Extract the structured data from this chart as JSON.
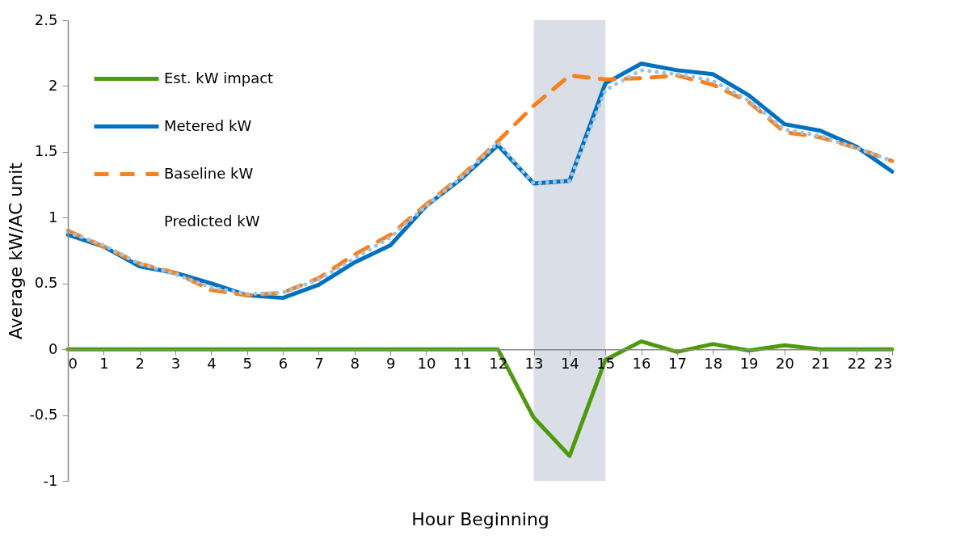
{
  "chart_data": {
    "type": "line",
    "xlabel": "Hour Beginning",
    "ylabel": "Average kW/AC unit",
    "x": [
      0,
      1,
      2,
      3,
      4,
      5,
      6,
      7,
      8,
      9,
      10,
      11,
      12,
      13,
      14,
      15,
      16,
      17,
      18,
      19,
      20,
      21,
      22,
      23
    ],
    "xlim": [
      0,
      23
    ],
    "xticks": [
      0,
      1,
      2,
      3,
      4,
      5,
      6,
      7,
      8,
      9,
      10,
      11,
      12,
      13,
      14,
      15,
      16,
      17,
      18,
      19,
      20,
      21,
      22,
      23
    ],
    "ylim": [
      -1,
      2.5
    ],
    "yticks": [
      -1,
      -0.5,
      0,
      0.5,
      1,
      1.5,
      2,
      2.5
    ],
    "grid": false,
    "legend": "top left",
    "marker": "none",
    "bands": [
      {
        "axis": "x",
        "from": 13,
        "to": 15,
        "color": "#d6dce4"
      }
    ],
    "series": [
      {
        "name": "Est. kW impact",
        "color": "#4e9a0f",
        "line_style": "solid",
        "values": [
          0,
          0,
          0,
          0,
          0,
          0,
          0,
          0,
          0,
          0,
          0,
          0,
          0,
          -0.52,
          -0.81,
          -0.08,
          0.06,
          -0.02,
          0.04,
          -0.01,
          0.03,
          0,
          0,
          0
        ]
      },
      {
        "name": "Metered kW",
        "color": "#0070c0",
        "line_style": "solid",
        "values": [
          0.87,
          0.78,
          0.63,
          0.58,
          0.5,
          0.41,
          0.39,
          0.49,
          0.66,
          0.79,
          1.09,
          1.3,
          1.55,
          1.26,
          1.28,
          2.02,
          2.17,
          2.12,
          2.09,
          1.93,
          1.71,
          1.66,
          1.54,
          1.35
        ]
      },
      {
        "name": "Baseline kW",
        "color": "#f5821f",
        "line_style": "dashed",
        "values": [
          0.9,
          0.78,
          0.65,
          0.58,
          0.45,
          0.41,
          0.43,
          0.54,
          0.72,
          0.87,
          1.1,
          1.32,
          1.58,
          1.85,
          2.08,
          2.05,
          2.06,
          2.08,
          2.01,
          1.88,
          1.65,
          1.61,
          1.53,
          1.43
        ]
      },
      {
        "name": "Predicted kW",
        "color": "#9dc3e6",
        "line_style": "dotted",
        "values": [
          0.89,
          0.79,
          0.65,
          0.57,
          0.47,
          0.42,
          0.43,
          0.53,
          0.69,
          0.85,
          1.09,
          1.31,
          1.57,
          1.26,
          1.28,
          1.97,
          2.12,
          2.09,
          2.04,
          1.89,
          1.67,
          1.62,
          1.53,
          1.43
        ]
      }
    ]
  }
}
